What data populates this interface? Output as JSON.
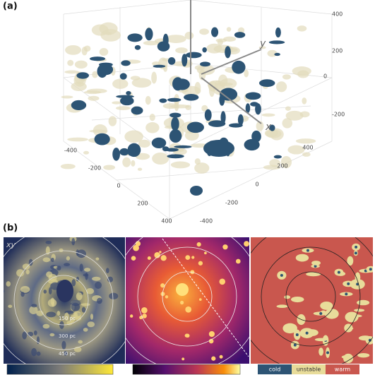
{
  "panel_a": {
    "label": "(a)",
    "axis_labels": {
      "x": "x",
      "y": "y"
    },
    "z_ticks": [
      400,
      200,
      0,
      -200
    ],
    "left_ticks": [
      -400,
      -200,
      0,
      200,
      400
    ],
    "right_ticks": [
      -400,
      -200,
      0,
      200,
      400
    ],
    "colors": {
      "cold": "#2d5474",
      "warm": "#e3dcbc"
    }
  },
  "panel_b": {
    "label": "(b)",
    "plane": "xy",
    "rings": [
      "150 pc",
      "300 pc",
      "450 pc"
    ],
    "phases": [
      {
        "name": "cold",
        "color": "#2d5474"
      },
      {
        "name": "unstable",
        "color": "#e8dc9a"
      },
      {
        "name": "warm",
        "color": "#c9574e"
      }
    ]
  }
}
